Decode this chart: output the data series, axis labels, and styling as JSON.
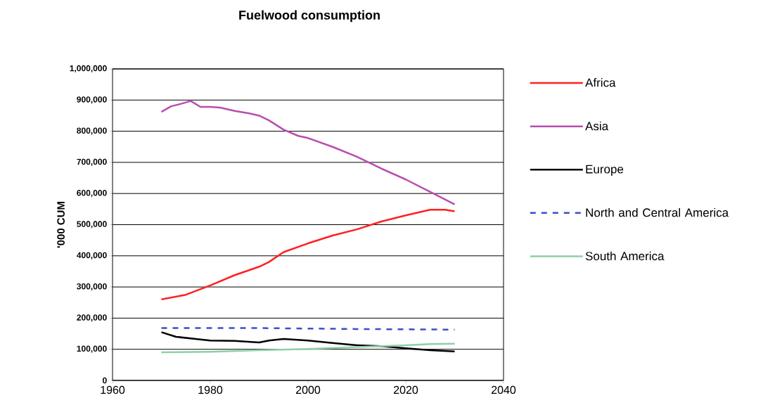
{
  "chart_data": {
    "type": "line",
    "title": "Fuelwood consumption",
    "ylabel": "'000 CUM",
    "xlim": [
      1960,
      2040
    ],
    "xticks": [
      1960,
      1980,
      2000,
      2020,
      2040
    ],
    "ylim": [
      0,
      1000000
    ],
    "yticks": [
      {
        "value": 0,
        "label": "0"
      },
      {
        "value": 100000,
        "label": "100,000"
      },
      {
        "value": 200000,
        "label": "200,000"
      },
      {
        "value": 300000,
        "label": "300,000"
      },
      {
        "value": 400000,
        "label": "400,000"
      },
      {
        "value": 500000,
        "label": "500,000"
      },
      {
        "value": 600000,
        "label": "600,000"
      },
      {
        "value": 700000,
        "label": "700,000"
      },
      {
        "value": 800000,
        "label": "800,000"
      },
      {
        "value": 900000,
        "label": "900,000"
      },
      {
        "value": 1000000,
        "label": "1,000,000"
      }
    ],
    "grid": "y",
    "legend": "right",
    "marker": "none",
    "series": [
      {
        "name": "Africa",
        "color": "#ff2020",
        "line_style": "solid",
        "x": [
          1970,
          1975,
          1980,
          1985,
          1990,
          1992,
          1995,
          2000,
          2005,
          2010,
          2015,
          2020,
          2025,
          2028,
          2030
        ],
        "values": [
          260000,
          275000,
          305000,
          338000,
          365000,
          380000,
          412000,
          440000,
          465000,
          485000,
          510000,
          530000,
          548000,
          548000,
          543000
        ]
      },
      {
        "name": "Asia",
        "color": "#b84db0",
        "line_style": "solid",
        "x": [
          1970,
          1972,
          1974,
          1976,
          1978,
          1980,
          1982,
          1985,
          1988,
          1990,
          1992,
          1995,
          1998,
          2000,
          2005,
          2010,
          2015,
          2020,
          2025,
          2030
        ],
        "values": [
          862000,
          880000,
          888000,
          897000,
          878000,
          878000,
          876000,
          865000,
          857000,
          850000,
          835000,
          805000,
          785000,
          778000,
          750000,
          718000,
          680000,
          645000,
          605000,
          565000
        ]
      },
      {
        "name": "Europe",
        "color": "#000000",
        "line_style": "solid",
        "x": [
          1970,
          1973,
          1977,
          1980,
          1985,
          1990,
          1992,
          1995,
          2000,
          2005,
          2010,
          2015,
          2020,
          2025,
          2030
        ],
        "values": [
          155000,
          140000,
          133000,
          128000,
          127000,
          122000,
          128000,
          133000,
          128000,
          120000,
          113000,
          110000,
          103000,
          97000,
          93000
        ]
      },
      {
        "name": "North and Central America",
        "color": "#3b4fc4",
        "line_style": "dashed",
        "x": [
          1970,
          1990,
          2010,
          2030
        ],
        "values": [
          168000,
          168000,
          165000,
          163000
        ]
      },
      {
        "name": "South America",
        "color": "#8fcfa8",
        "line_style": "solid",
        "x": [
          1970,
          1980,
          1990,
          2000,
          2010,
          2020,
          2025,
          2030
        ],
        "values": [
          90000,
          92000,
          97000,
          101000,
          107000,
          113000,
          117000,
          118000
        ]
      }
    ]
  }
}
